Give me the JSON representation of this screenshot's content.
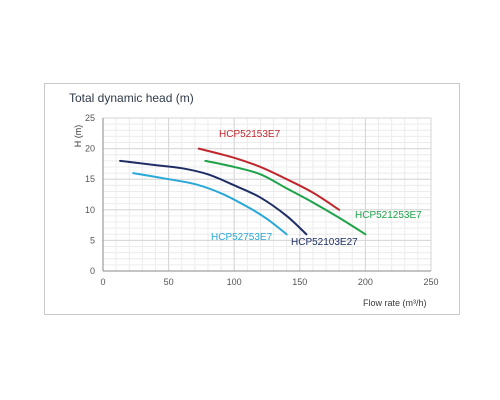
{
  "chart_data": {
    "type": "line",
    "title": "Total dynamic head (m)",
    "ylabel": "H (m)",
    "xlabel": "Flow rate (m³/h)",
    "xlim": [
      0,
      250
    ],
    "ylim": [
      0,
      25
    ],
    "xticks": [
      0,
      50,
      100,
      150,
      200,
      250
    ],
    "yticks": [
      0,
      5,
      10,
      15,
      20,
      25
    ],
    "grid": true,
    "legend": "inline",
    "series": [
      {
        "name": "HCP52153E7",
        "color": "#c0272d",
        "x": [
          73,
          100,
          120,
          140,
          160,
          180
        ],
        "y": [
          20,
          18.5,
          17,
          15,
          12.8,
          10
        ]
      },
      {
        "name": "HCP521253E7",
        "color": "#1fa34a",
        "x": [
          78,
          100,
          120,
          140,
          160,
          180,
          200
        ],
        "y": [
          18,
          17,
          15.8,
          13.5,
          11.2,
          8.7,
          6
        ]
      },
      {
        "name": "HCP52103E27",
        "color": "#1f2f66",
        "x": [
          13,
          40,
          60,
          80,
          100,
          120,
          140,
          155
        ],
        "y": [
          18,
          17.3,
          16.8,
          15.8,
          14,
          12,
          9,
          6
        ]
      },
      {
        "name": "HCP52753E7",
        "color": "#2aa8d8",
        "x": [
          23,
          50,
          70,
          90,
          110,
          125,
          140
        ],
        "y": [
          16,
          15,
          14.2,
          12.7,
          10.5,
          8.5,
          6
        ]
      }
    ]
  }
}
